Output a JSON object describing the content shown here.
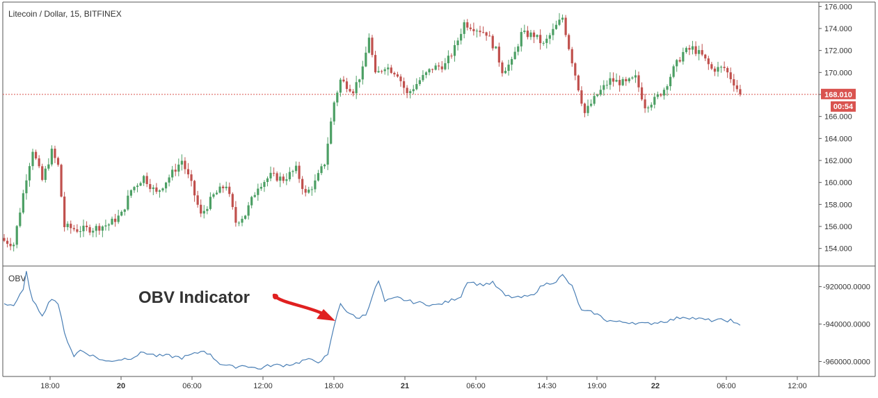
{
  "chart_title": "Litecoin / Dollar, 15, BITFINEX",
  "indicator_label": "OBV",
  "annotation": {
    "text": "OBV Indicator"
  },
  "price_axis": {
    "ticks": [
      "176.000",
      "174.000",
      "172.000",
      "170.000",
      "168.000",
      "166.000",
      "164.000",
      "162.000",
      "160.000",
      "158.000",
      "156.000",
      "154.000"
    ]
  },
  "obv_axis": {
    "ticks": [
      "-920000.0000",
      "-940000.0000",
      "-960000.0000"
    ]
  },
  "last_price": {
    "label": "168.010",
    "value": 168.01,
    "countdown": "00:54"
  },
  "time_axis": {
    "ticks": [
      "18:00",
      "20",
      "06:00",
      "12:00",
      "18:00",
      "21",
      "06:00",
      "14:30",
      "19:00",
      "22",
      "06:00",
      "12:00"
    ]
  },
  "colors": {
    "up": "#4c9f64",
    "down": "#c0504d",
    "obv_line": "#4a7fb5",
    "last_price": "#d9534f",
    "annotation_arrow": "#e02020",
    "axis": "#555555"
  },
  "chart_data": [
    {
      "type": "candlestick",
      "title": "Litecoin / Dollar, 15, BITFINEX",
      "ylim": [
        152.4,
        176.4
      ],
      "price_path": [
        {
          "i": 0,
          "p": 154.7
        },
        {
          "i": 3,
          "p": 154.4
        },
        {
          "i": 7,
          "p": 160.5
        },
        {
          "i": 9,
          "p": 163.0
        },
        {
          "i": 12,
          "p": 160.2
        },
        {
          "i": 15,
          "p": 162.8
        },
        {
          "i": 17,
          "p": 161.5
        },
        {
          "i": 19,
          "p": 156.0
        },
        {
          "i": 23,
          "p": 155.7
        },
        {
          "i": 28,
          "p": 155.8
        },
        {
          "i": 33,
          "p": 156.2
        },
        {
          "i": 37,
          "p": 157.1
        },
        {
          "i": 40,
          "p": 159.3
        },
        {
          "i": 44,
          "p": 160.5
        },
        {
          "i": 48,
          "p": 159.0
        },
        {
          "i": 52,
          "p": 160.5
        },
        {
          "i": 56,
          "p": 162.0
        },
        {
          "i": 59,
          "p": 159.8
        },
        {
          "i": 62,
          "p": 157.0
        },
        {
          "i": 66,
          "p": 158.8
        },
        {
          "i": 70,
          "p": 159.8
        },
        {
          "i": 73,
          "p": 156.4
        },
        {
          "i": 76,
          "p": 157.1
        },
        {
          "i": 80,
          "p": 159.7
        },
        {
          "i": 84,
          "p": 160.6
        },
        {
          "i": 88,
          "p": 160.3
        },
        {
          "i": 92,
          "p": 161.2
        },
        {
          "i": 95,
          "p": 158.9
        },
        {
          "i": 98,
          "p": 160.0
        },
        {
          "i": 101,
          "p": 161.8
        },
        {
          "i": 104,
          "p": 167.3
        },
        {
          "i": 106,
          "p": 169.3
        },
        {
          "i": 110,
          "p": 168.4
        },
        {
          "i": 113,
          "p": 170.2
        },
        {
          "i": 115,
          "p": 173.3
        },
        {
          "i": 117,
          "p": 169.7
        },
        {
          "i": 120,
          "p": 170.6
        },
        {
          "i": 124,
          "p": 169.9
        },
        {
          "i": 127,
          "p": 168.0
        },
        {
          "i": 131,
          "p": 169.3
        },
        {
          "i": 135,
          "p": 170.4
        },
        {
          "i": 139,
          "p": 170.7
        },
        {
          "i": 142,
          "p": 172.2
        },
        {
          "i": 145,
          "p": 174.5
        },
        {
          "i": 148,
          "p": 174.1
        },
        {
          "i": 152,
          "p": 173.6
        },
        {
          "i": 155,
          "p": 172.0
        },
        {
          "i": 157,
          "p": 170.2
        },
        {
          "i": 160,
          "p": 170.9
        },
        {
          "i": 163,
          "p": 173.5
        },
        {
          "i": 167,
          "p": 173.4
        },
        {
          "i": 170,
          "p": 172.5
        },
        {
          "i": 174,
          "p": 174.2
        },
        {
          "i": 176,
          "p": 175.0
        },
        {
          "i": 178,
          "p": 172.3
        },
        {
          "i": 181,
          "p": 168.6
        },
        {
          "i": 183,
          "p": 166.3
        },
        {
          "i": 187,
          "p": 168.0
        },
        {
          "i": 191,
          "p": 169.3
        },
        {
          "i": 196,
          "p": 169.0
        },
        {
          "i": 199,
          "p": 169.5
        },
        {
          "i": 202,
          "p": 167.0
        },
        {
          "i": 205,
          "p": 167.5
        },
        {
          "i": 208,
          "p": 168.5
        },
        {
          "i": 211,
          "p": 170.3
        },
        {
          "i": 214,
          "p": 171.8
        },
        {
          "i": 217,
          "p": 172.2
        },
        {
          "i": 220,
          "p": 171.5
        },
        {
          "i": 223,
          "p": 170.3
        },
        {
          "i": 227,
          "p": 170.4
        },
        {
          "i": 230,
          "p": 169.1
        },
        {
          "i": 232,
          "p": 168.0
        }
      ],
      "last_price": 168.01
    },
    {
      "type": "line",
      "title": "OBV",
      "ylim": [
        -968000,
        -909000
      ],
      "values_path": [
        {
          "i": 0,
          "v": -929000
        },
        {
          "i": 3,
          "v": -930000
        },
        {
          "i": 6,
          "v": -922000
        },
        {
          "i": 7,
          "v": -912500
        },
        {
          "i": 9,
          "v": -928000
        },
        {
          "i": 12,
          "v": -935000
        },
        {
          "i": 15,
          "v": -926000
        },
        {
          "i": 17,
          "v": -929000
        },
        {
          "i": 19,
          "v": -945000
        },
        {
          "i": 22,
          "v": -957000
        },
        {
          "i": 24,
          "v": -954000
        },
        {
          "i": 28,
          "v": -957000
        },
        {
          "i": 32,
          "v": -960000
        },
        {
          "i": 36,
          "v": -959000
        },
        {
          "i": 40,
          "v": -958000
        },
        {
          "i": 44,
          "v": -955000
        },
        {
          "i": 48,
          "v": -957000
        },
        {
          "i": 52,
          "v": -957000
        },
        {
          "i": 56,
          "v": -958000
        },
        {
          "i": 60,
          "v": -956000
        },
        {
          "i": 63,
          "v": -954000
        },
        {
          "i": 66,
          "v": -958000
        },
        {
          "i": 68,
          "v": -961000
        },
        {
          "i": 72,
          "v": -963000
        },
        {
          "i": 76,
          "v": -962000
        },
        {
          "i": 80,
          "v": -964000
        },
        {
          "i": 84,
          "v": -962000
        },
        {
          "i": 88,
          "v": -962000
        },
        {
          "i": 92,
          "v": -961000
        },
        {
          "i": 95,
          "v": -959000
        },
        {
          "i": 99,
          "v": -960000
        },
        {
          "i": 102,
          "v": -957000
        },
        {
          "i": 104,
          "v": -941000
        },
        {
          "i": 106,
          "v": -929000
        },
        {
          "i": 108,
          "v": -933000
        },
        {
          "i": 111,
          "v": -937000
        },
        {
          "i": 114,
          "v": -935000
        },
        {
          "i": 116,
          "v": -925000
        },
        {
          "i": 118,
          "v": -917000
        },
        {
          "i": 120,
          "v": -928000
        },
        {
          "i": 124,
          "v": -926000
        },
        {
          "i": 128,
          "v": -928000
        },
        {
          "i": 132,
          "v": -929000
        },
        {
          "i": 136,
          "v": -930000
        },
        {
          "i": 140,
          "v": -928000
        },
        {
          "i": 144,
          "v": -925000
        },
        {
          "i": 146,
          "v": -917000
        },
        {
          "i": 150,
          "v": -919000
        },
        {
          "i": 154,
          "v": -918000
        },
        {
          "i": 158,
          "v": -925000
        },
        {
          "i": 162,
          "v": -926000
        },
        {
          "i": 166,
          "v": -925000
        },
        {
          "i": 170,
          "v": -919000
        },
        {
          "i": 174,
          "v": -917000
        },
        {
          "i": 176,
          "v": -914000
        },
        {
          "i": 179,
          "v": -920000
        },
        {
          "i": 182,
          "v": -933000
        },
        {
          "i": 186,
          "v": -934000
        },
        {
          "i": 190,
          "v": -938000
        },
        {
          "i": 194,
          "v": -939000
        },
        {
          "i": 198,
          "v": -939000
        },
        {
          "i": 202,
          "v": -940000
        },
        {
          "i": 206,
          "v": -939000
        },
        {
          "i": 210,
          "v": -938000
        },
        {
          "i": 214,
          "v": -936000
        },
        {
          "i": 218,
          "v": -937000
        },
        {
          "i": 222,
          "v": -938000
        },
        {
          "i": 226,
          "v": -938000
        },
        {
          "i": 229,
          "v": -938000
        },
        {
          "i": 230,
          "v": -940000
        },
        {
          "i": 232,
          "v": -940000
        }
      ]
    }
  ]
}
